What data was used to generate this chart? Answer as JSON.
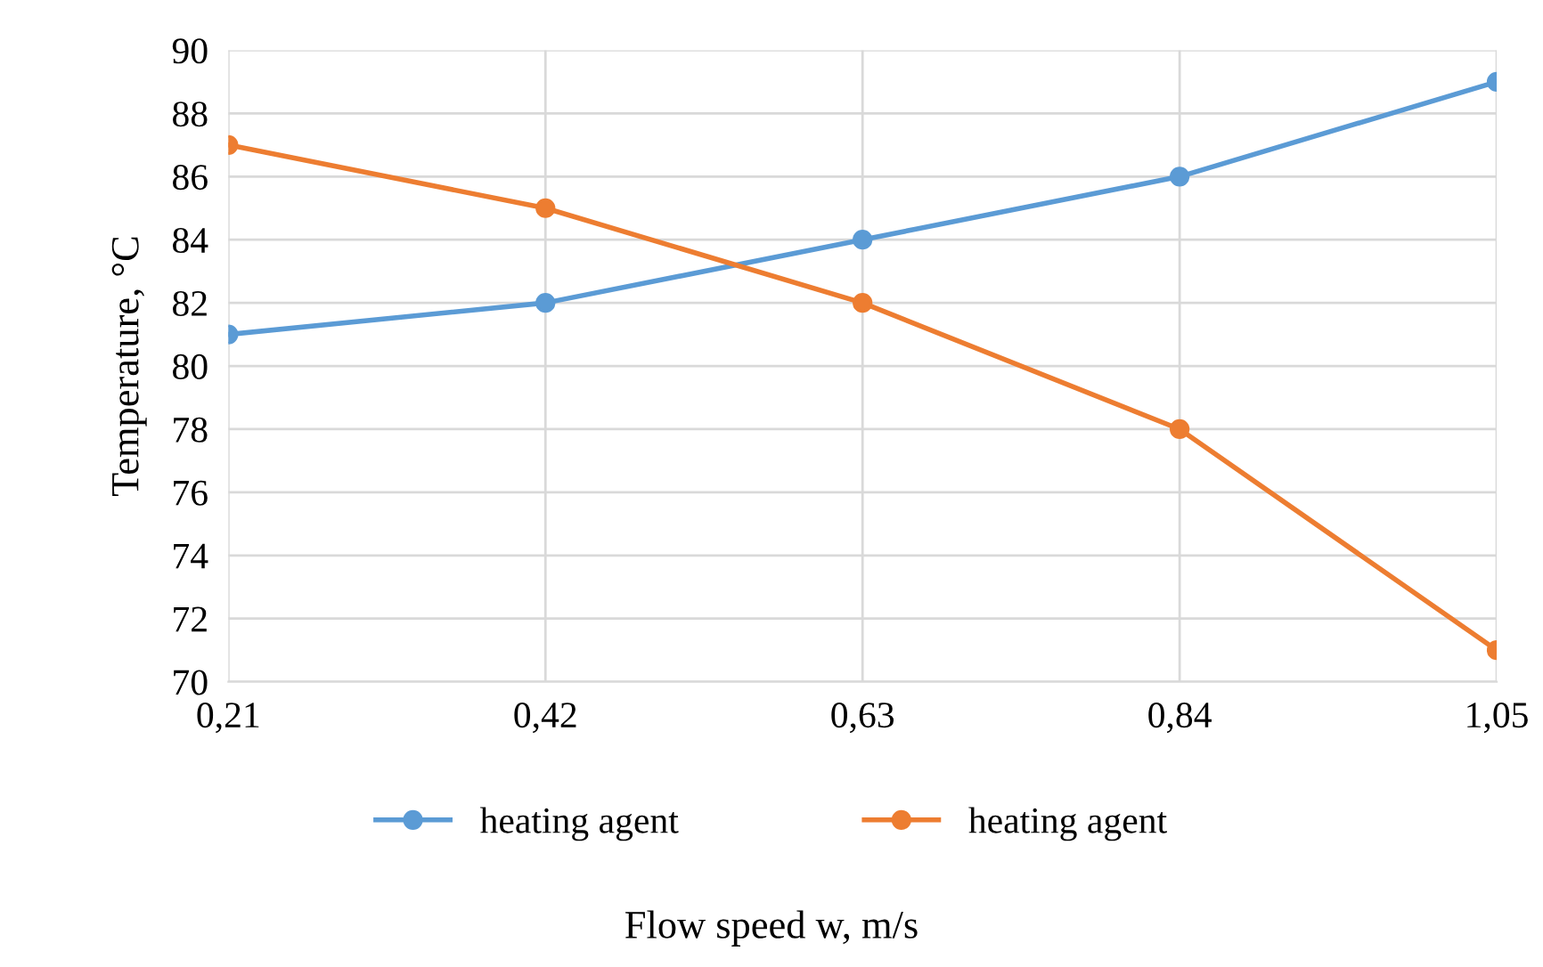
{
  "chart_data": {
    "type": "line",
    "xlabel": "Flow speed w, m/s",
    "ylabel": "Temperature, °C",
    "x": [
      0.21,
      0.42,
      0.63,
      0.84,
      1.05
    ],
    "series": [
      {
        "name": "heating agent",
        "color": "#5b9bd5",
        "values": [
          81,
          82,
          84,
          86,
          89
        ]
      },
      {
        "name": "heating agent",
        "color": "#ed7d31",
        "values": [
          87,
          85,
          82,
          78,
          71
        ]
      }
    ],
    "xlim": [
      0.21,
      1.05
    ],
    "xticks": [
      {
        "value": 0.21,
        "label": "0,21"
      },
      {
        "value": 0.42,
        "label": "0,42"
      },
      {
        "value": 0.63,
        "label": "0,63"
      },
      {
        "value": 0.84,
        "label": "0,84"
      },
      {
        "value": 1.05,
        "label": "1,05"
      }
    ],
    "ylim": [
      70,
      90
    ],
    "yticks": [
      70,
      72,
      74,
      76,
      78,
      80,
      82,
      84,
      86,
      88,
      90
    ],
    "grid": true,
    "legend": "bottom",
    "marker": "circle",
    "line_style": "solid"
  }
}
